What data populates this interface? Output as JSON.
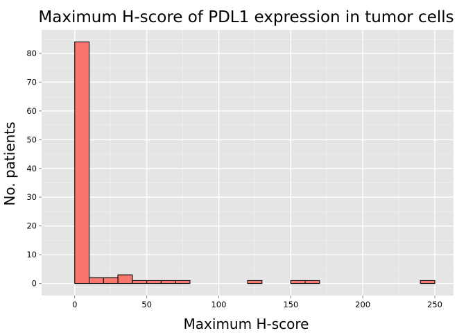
{
  "chart_data": {
    "type": "bar",
    "title": "Maximum H-score of PDL1 expression in tumor cells",
    "xlabel": "Maximum H-score",
    "ylabel": "No. patients",
    "xlim": [
      -23,
      263
    ],
    "ylim": [
      -4.2,
      88.2
    ],
    "x_ticks": [
      0,
      50,
      100,
      150,
      200,
      250
    ],
    "y_ticks": [
      0,
      10,
      20,
      30,
      40,
      50,
      60,
      70,
      80
    ],
    "bin_width": 10,
    "bin_starts": [
      -10,
      0,
      10,
      20,
      30,
      40,
      50,
      60,
      70,
      80,
      90,
      100,
      110,
      120,
      130,
      140,
      150,
      160,
      170,
      180,
      190,
      200,
      210,
      220,
      230,
      240
    ],
    "values": [
      0,
      84,
      2,
      2,
      3,
      1,
      1,
      1,
      1,
      0,
      0,
      0,
      0,
      1,
      0,
      0,
      1,
      1,
      0,
      0,
      0,
      0,
      0,
      0,
      0,
      1
    ],
    "grid": true,
    "legend": "none",
    "colors": {
      "bar_fill": "#F8766D",
      "bar_stroke": "#000000",
      "panel": "#E5E5E5",
      "grid_major": "#FFFFFF",
      "grid_minor": "#F2F2F2"
    }
  }
}
